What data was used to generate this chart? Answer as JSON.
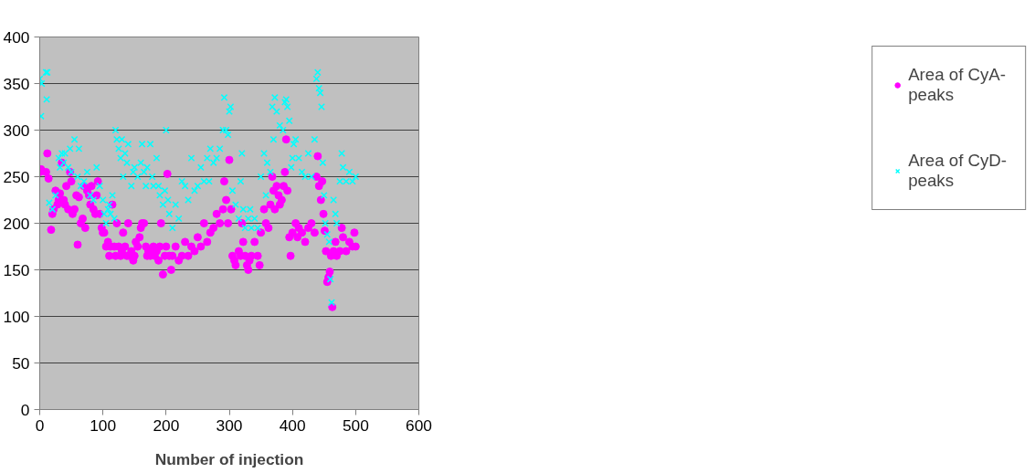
{
  "chart_data": {
    "type": "scatter",
    "xlabel": "Number of injection",
    "xlim": [
      0,
      600
    ],
    "xticks": [
      0,
      100,
      200,
      300,
      400,
      500,
      600
    ],
    "ylim": [
      0,
      400
    ],
    "yticks": [
      0,
      50,
      100,
      150,
      200,
      250,
      300,
      350,
      400
    ],
    "grid": "y",
    "legend": "right",
    "series": [
      {
        "name": "Area of CyA-peaks",
        "color": "#ff00ff",
        "marker": "circle",
        "x": [
          0,
          2,
          10,
          12,
          14,
          18,
          20,
          22,
          25,
          28,
          30,
          32,
          35,
          38,
          40,
          42,
          45,
          48,
          50,
          52,
          55,
          58,
          60,
          62,
          65,
          68,
          70,
          72,
          75,
          78,
          80,
          82,
          85,
          88,
          90,
          92,
          95,
          98,
          100,
          102,
          105,
          108,
          110,
          112,
          115,
          118,
          120,
          122,
          125,
          128,
          130,
          132,
          135,
          138,
          140,
          142,
          145,
          148,
          150,
          152,
          155,
          158,
          160,
          162,
          165,
          168,
          170,
          172,
          175,
          178,
          180,
          182,
          185,
          188,
          190,
          192,
          195,
          198,
          200,
          202,
          205,
          208,
          210,
          215,
          220,
          225,
          230,
          235,
          240,
          245,
          250,
          255,
          260,
          265,
          270,
          275,
          280,
          285,
          290,
          292,
          295,
          298,
          300,
          303,
          305,
          308,
          310,
          315,
          318,
          320,
          322,
          325,
          328,
          330,
          332,
          335,
          340,
          345,
          348,
          350,
          355,
          358,
          362,
          365,
          368,
          370,
          372,
          375,
          378,
          380,
          383,
          386,
          388,
          390,
          392,
          395,
          397,
          400,
          405,
          408,
          410,
          415,
          420,
          425,
          430,
          435,
          438,
          440,
          442,
          445,
          447,
          449,
          451,
          453,
          455,
          457,
          459,
          461,
          463,
          465,
          468,
          470,
          475,
          478,
          480,
          485,
          490,
          495,
          498,
          500
        ],
        "values": [
          255,
          258,
          255,
          275,
          248,
          193,
          210,
          215,
          235,
          220,
          225,
          232,
          265,
          225,
          220,
          240,
          215,
          255,
          245,
          210,
          215,
          230,
          177,
          228,
          200,
          205,
          240,
          195,
          235,
          230,
          220,
          240,
          215,
          210,
          230,
          245,
          210,
          195,
          190,
          190,
          175,
          180,
          165,
          175,
          220,
          175,
          165,
          200,
          175,
          165,
          170,
          190,
          175,
          165,
          200,
          165,
          170,
          160,
          165,
          180,
          175,
          185,
          195,
          200,
          200,
          175,
          165,
          170,
          165,
          170,
          175,
          165,
          170,
          160,
          175,
          200,
          145,
          165,
          175,
          253,
          165,
          150,
          165,
          175,
          160,
          165,
          180,
          165,
          175,
          170,
          185,
          175,
          200,
          180,
          190,
          195,
          210,
          200,
          215,
          245,
          225,
          200,
          268,
          215,
          165,
          160,
          155,
          170,
          165,
          200,
          180,
          165,
          155,
          150,
          160,
          165,
          180,
          165,
          155,
          190,
          215,
          200,
          195,
          220,
          250,
          235,
          215,
          240,
          230,
          220,
          225,
          240,
          255,
          290,
          235,
          185,
          165,
          190,
          200,
          185,
          195,
          190,
          180,
          195,
          200,
          190,
          250,
          272,
          240,
          225,
          245,
          210,
          192,
          170,
          137,
          142,
          148,
          165,
          110,
          170,
          180,
          165,
          170,
          195,
          185,
          170,
          180,
          175,
          190,
          175
        ]
      },
      {
        "name": "Area of CyD-peaks",
        "color": "#00ffff",
        "marker": "cross",
        "x": [
          0,
          2,
          3,
          10,
          11,
          12,
          15,
          20,
          25,
          30,
          32,
          35,
          38,
          40,
          45,
          48,
          50,
          55,
          60,
          62,
          65,
          70,
          75,
          80,
          85,
          90,
          95,
          100,
          102,
          105,
          108,
          110,
          112,
          115,
          118,
          120,
          122,
          125,
          128,
          130,
          132,
          135,
          138,
          140,
          145,
          148,
          150,
          155,
          160,
          162,
          165,
          168,
          170,
          175,
          178,
          180,
          185,
          188,
          190,
          195,
          198,
          200,
          203,
          205,
          210,
          215,
          220,
          225,
          230,
          235,
          240,
          245,
          250,
          255,
          260,
          265,
          268,
          270,
          275,
          280,
          285,
          290,
          292,
          295,
          298,
          300,
          302,
          305,
          310,
          315,
          318,
          320,
          322,
          325,
          330,
          333,
          335,
          340,
          345,
          350,
          355,
          358,
          360,
          365,
          368,
          370,
          372,
          375,
          380,
          385,
          388,
          390,
          392,
          395,
          398,
          400,
          402,
          405,
          410,
          415,
          420,
          425,
          430,
          435,
          438,
          440,
          442,
          444,
          446,
          448,
          450,
          452,
          455,
          458,
          460,
          462,
          465,
          468,
          470,
          475,
          478,
          480,
          485,
          490,
          495,
          500
        ],
        "values": [
          355,
          315,
          350,
          362,
          333,
          362,
          222,
          215,
          230,
          270,
          260,
          275,
          265,
          275,
          260,
          280,
          255,
          290,
          250,
          280,
          240,
          245,
          255,
          230,
          225,
          260,
          240,
          225,
          210,
          200,
          215,
          220,
          210,
          230,
          205,
          300,
          290,
          280,
          270,
          290,
          250,
          275,
          265,
          285,
          240,
          255,
          260,
          250,
          265,
          285,
          255,
          240,
          260,
          285,
          250,
          240,
          270,
          240,
          230,
          220,
          235,
          300,
          225,
          210,
          195,
          220,
          205,
          245,
          240,
          225,
          270,
          235,
          240,
          260,
          245,
          270,
          245,
          280,
          265,
          270,
          280,
          300,
          335,
          300,
          295,
          320,
          325,
          235,
          220,
          205,
          245,
          275,
          215,
          195,
          205,
          215,
          195,
          205,
          195,
          250,
          275,
          230,
          265,
          255,
          325,
          290,
          335,
          320,
          305,
          300,
          330,
          333,
          325,
          310,
          260,
          270,
          285,
          290,
          270,
          255,
          250,
          275,
          250,
          290,
          355,
          362,
          345,
          340,
          325,
          265,
          230,
          200,
          188,
          180,
          140,
          115,
          225,
          210,
          200,
          245,
          275,
          260,
          245,
          255,
          245,
          250
        ]
      }
    ]
  }
}
